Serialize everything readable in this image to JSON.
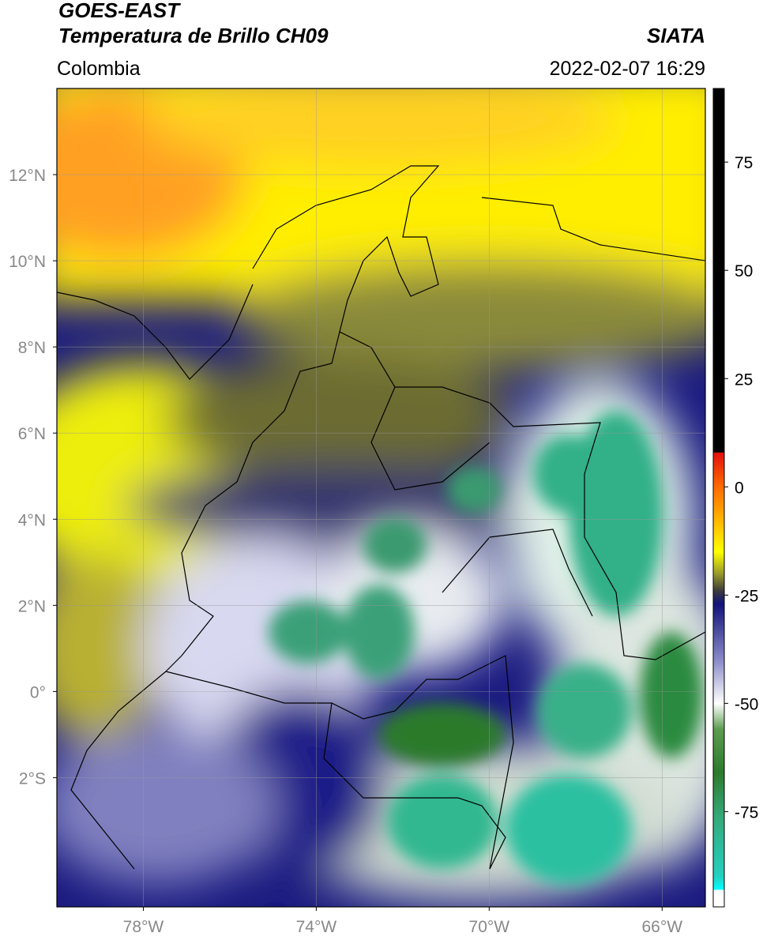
{
  "header": {
    "title": "GOES-EAST",
    "subtitle": "Temperatura de Brillo CH09",
    "source": "SIATA",
    "region": "Colombia",
    "datetime": "2022-02-07 16:29"
  },
  "map": {
    "lon_range": [
      -80,
      -65
    ],
    "lat_range": [
      -5,
      14
    ],
    "lon_ticks": [
      {
        "value": -78,
        "label": "78°W"
      },
      {
        "value": -74,
        "label": "74°W"
      },
      {
        "value": -70,
        "label": "70°W"
      },
      {
        "value": -66,
        "label": "66°W"
      }
    ],
    "lat_ticks": [
      {
        "value": 12,
        "label": "12°N"
      },
      {
        "value": 10,
        "label": "10°N"
      },
      {
        "value": 8,
        "label": "8°N"
      },
      {
        "value": 6,
        "label": "6°N"
      },
      {
        "value": 4,
        "label": "4°N"
      },
      {
        "value": 2,
        "label": "2°N"
      },
      {
        "value": 0,
        "label": "0°"
      },
      {
        "value": -2,
        "label": "2°S"
      }
    ],
    "grid": true
  },
  "colorbar": {
    "range": [
      -97,
      92
    ],
    "ticks": [
      75,
      50,
      25,
      0,
      -25,
      -50,
      -75
    ],
    "colormap": [
      {
        "value": 92,
        "color": "#000000"
      },
      {
        "value": 8,
        "color": "#000000"
      },
      {
        "value": 7.9,
        "color": "#e01010"
      },
      {
        "value": 0,
        "color": "#ff6a00"
      },
      {
        "value": -10,
        "color": "#ffcc00"
      },
      {
        "value": -15,
        "color": "#ffff00"
      },
      {
        "value": -20,
        "color": "#9a9a2c"
      },
      {
        "value": -24,
        "color": "#3c3c3c"
      },
      {
        "value": -27,
        "color": "#12127a"
      },
      {
        "value": -40,
        "color": "#8a8ac8"
      },
      {
        "value": -50,
        "color": "#ffffff"
      },
      {
        "value": -56,
        "color": "#5c9c50"
      },
      {
        "value": -66,
        "color": "#2c7a2c"
      },
      {
        "value": -76,
        "color": "#36a878"
      },
      {
        "value": -90,
        "color": "#24d0c0"
      },
      {
        "value": -93,
        "color": "#00ffff"
      },
      {
        "value": -93.1,
        "color": "#ffffff"
      },
      {
        "value": -97,
        "color": "#ffffff"
      }
    ]
  }
}
